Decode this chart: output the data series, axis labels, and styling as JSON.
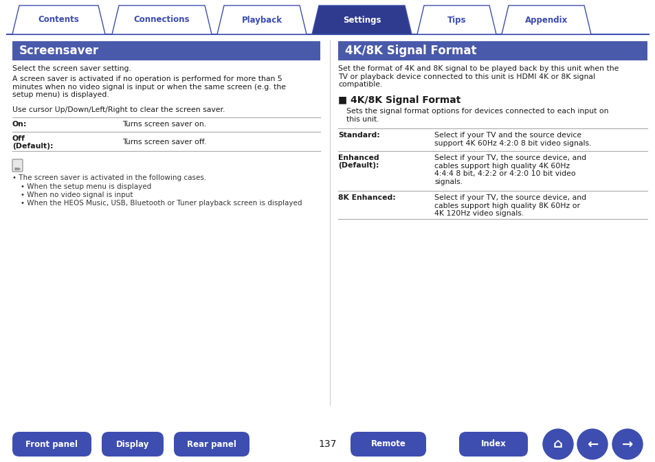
{
  "bg_color": "#ffffff",
  "tab_color_active": "#2e3b8f",
  "tab_color_inactive": "#ffffff",
  "tab_border_color": "#3d4db0",
  "tab_text_color_active": "#ffffff",
  "tab_text_color_inactive": "#3a4bb0",
  "tabs": [
    "Contents",
    "Connections",
    "Playback",
    "Settings",
    "Tips",
    "Appendix"
  ],
  "active_tab_idx": 3,
  "header_bg": "#4a5aaa",
  "header_text_color": "#ffffff",
  "left_title": "Screensaver",
  "right_title": "4K/8K Signal Format",
  "page_number": "137",
  "button_color": "#3d4db0",
  "button_text_color": "#ffffff",
  "line_color": "#aaaaaa",
  "text_color": "#1a1a1a",
  "note_color": "#333333",
  "bottom_buttons": [
    "Front panel",
    "Display",
    "Rear panel",
    "Remote",
    "Index"
  ]
}
